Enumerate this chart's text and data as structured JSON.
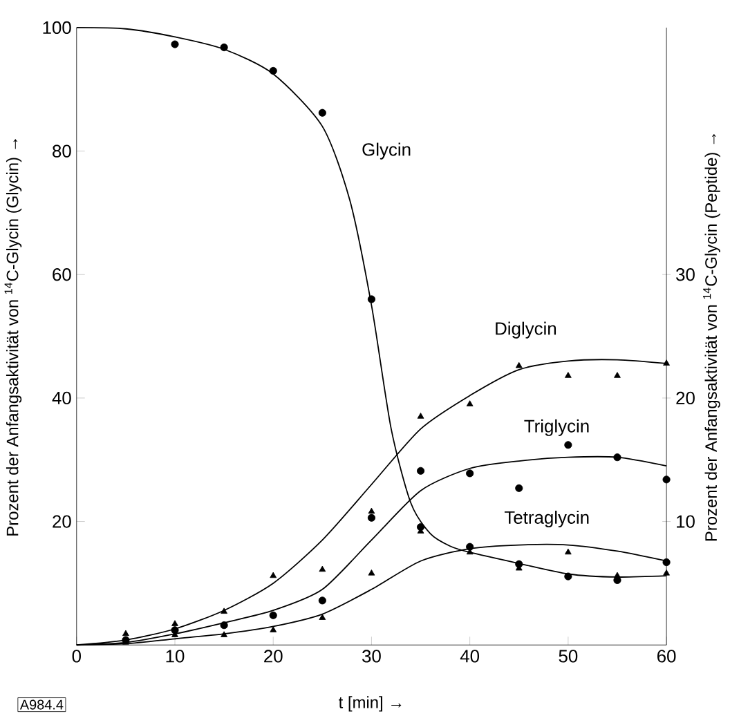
{
  "chart_data": {
    "type": "scatter",
    "xlabel": "t [min] →",
    "ylabel": "Prozent der Anfangsaktivität von $^{14}$C-Glycin (Glycin) →",
    "y2label": "Prozent der Anfangsaktivität von $^{14}$C-Glycin (Peptide) →",
    "xlim": [
      0,
      60
    ],
    "xticks": [
      0,
      10,
      20,
      30,
      40,
      50,
      60
    ],
    "ylim": [
      0,
      100
    ],
    "yticks": [
      20,
      40,
      60,
      80,
      100
    ],
    "y2lim": [
      0,
      50
    ],
    "y2ticks": [
      10,
      20,
      30
    ],
    "annotations": [
      "A984.4"
    ],
    "series": [
      {
        "marker": "circle",
        "color": "#000000",
        "x": [
          10,
          15,
          20,
          25,
          30,
          35,
          40,
          45,
          50,
          55,
          60
        ],
        "values": [
          97.3,
          96.8,
          93.0,
          86.2,
          56.0,
          19.1,
          15.9,
          13.1,
          11.1,
          10.5,
          13.4
        ]
      },
      {
        "marker": "triangle",
        "color": "#000000",
        "axis": "y2",
        "x": [
          5,
          10,
          15,
          20,
          25,
          30,
          35,
          40,
          45,
          50,
          55,
          60
        ],
        "values": [
          0.9,
          1.7,
          2.7,
          5.6,
          6.1,
          10.8,
          18.5,
          19.5,
          22.6,
          21.8,
          21.8,
          22.8
        ]
      },
      {
        "marker": "circle",
        "color": "#000000",
        "axis": "y2",
        "x": [
          5,
          10,
          15,
          20,
          25,
          30,
          35,
          40,
          45,
          50,
          55,
          60
        ],
        "values": [
          0.4,
          1.2,
          1.6,
          2.4,
          3.6,
          10.3,
          14.1,
          13.9,
          12.7,
          16.2,
          15.2,
          13.4
        ]
      },
      {
        "marker": "triangle",
        "color": "#000000",
        "axis": "y2",
        "x": [
          5,
          10,
          15,
          20,
          25,
          30,
          35,
          40,
          45,
          50,
          55,
          60
        ],
        "values": [
          0.2,
          0.8,
          0.8,
          1.2,
          2.2,
          5.8,
          9.2,
          7.5,
          6.2,
          7.5,
          5.6,
          5.8
        ]
      },
      {
        "type": "line",
        "name": "Glycin",
        "color": "#000000",
        "x": [
          0,
          5,
          10,
          15,
          20,
          25,
          27.8,
          30,
          32,
          34,
          36,
          38,
          40,
          45,
          50,
          55,
          60
        ],
        "values": [
          100,
          99.8,
          98.5,
          96.5,
          92.5,
          84,
          72,
          55,
          35,
          23,
          18,
          16,
          15,
          13.2,
          11.5,
          11,
          11.2
        ]
      },
      {
        "type": "line",
        "name": "Diglycin",
        "color": "#000000",
        "axis": "y2",
        "x": [
          0,
          5,
          10,
          15,
          20,
          25,
          30,
          35,
          40,
          45,
          50,
          55,
          60
        ],
        "values": [
          0,
          0.4,
          1.3,
          2.8,
          5,
          8.5,
          13,
          17.5,
          20.2,
          22.3,
          23,
          23.1,
          22.8
        ]
      },
      {
        "type": "line",
        "name": "Triglycin",
        "color": "#000000",
        "axis": "y2",
        "x": [
          0,
          5,
          10,
          15,
          20,
          25,
          30,
          35,
          40,
          45,
          50,
          55,
          60
        ],
        "values": [
          0,
          0.2,
          0.9,
          1.8,
          2.8,
          4.5,
          8.5,
          12.5,
          14.3,
          14.9,
          15.2,
          15.2,
          14.5
        ]
      },
      {
        "type": "line",
        "name": "Tetraglycin",
        "color": "#000000",
        "axis": "y2",
        "x": [
          0,
          5,
          10,
          15,
          20,
          25,
          30,
          35,
          40,
          45,
          50,
          55,
          60
        ],
        "values": [
          0,
          0.1,
          0.5,
          0.9,
          1.5,
          2.5,
          4.5,
          6.8,
          7.8,
          8.1,
          8.1,
          7.6,
          6.8
        ]
      }
    ]
  }
}
